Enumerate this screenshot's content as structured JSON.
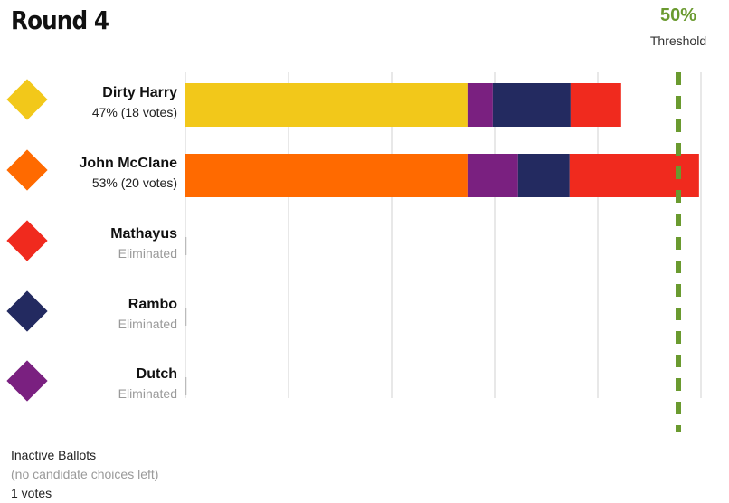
{
  "round_title": "Round 4",
  "threshold": {
    "percent": "50%",
    "label": "Threshold",
    "value": 50,
    "color": "#6a9a2f"
  },
  "candidates": [
    {
      "name": "Dirty Harry",
      "status": "47% (18 votes)",
      "color": "#f2c81a",
      "eliminated": false
    },
    {
      "name": "John McClane",
      "status": "53% (20 votes)",
      "color": "#ff6a00",
      "eliminated": false
    },
    {
      "name": "Mathayus",
      "status": "Eliminated",
      "color": "#f02a1e",
      "eliminated": true
    },
    {
      "name": "Rambo",
      "status": "Eliminated",
      "color": "#232a60",
      "eliminated": true
    },
    {
      "name": "Dutch",
      "status": "Eliminated",
      "color": "#7a2080",
      "eliminated": true
    }
  ],
  "inactive": {
    "title": "Inactive Ballots",
    "subtitle": "(no candidate choices left)",
    "count": "1 votes"
  },
  "chart_data": {
    "type": "bar",
    "orientation": "horizontal",
    "stacked": true,
    "categories": [
      "Dirty Harry",
      "John McClane",
      "Mathayus",
      "Rambo",
      "Dutch"
    ],
    "series": [
      {
        "name": "Dirty Harry",
        "color": "#f2c81a",
        "values": [
          29,
          0,
          0,
          0,
          0
        ]
      },
      {
        "name": "John McClane",
        "color": "#ff6a00",
        "values": [
          0,
          29,
          0,
          0,
          0
        ]
      },
      {
        "name": "Dutch",
        "color": "#7a2080",
        "values": [
          2.6,
          5.2,
          0,
          0,
          0
        ]
      },
      {
        "name": "Rambo",
        "color": "#232a60",
        "values": [
          8,
          5.3,
          0,
          0,
          0
        ]
      },
      {
        "name": "Mathayus",
        "color": "#f02a1e",
        "values": [
          5.2,
          13.3,
          0,
          0,
          0
        ]
      }
    ],
    "percentages": [
      47,
      53,
      0,
      0,
      0
    ],
    "votes": [
      18,
      20,
      0,
      0,
      0
    ],
    "xlim": [
      0,
      53
    ],
    "threshold_percent": 50,
    "grid": true,
    "grid_divisions": 5
  }
}
